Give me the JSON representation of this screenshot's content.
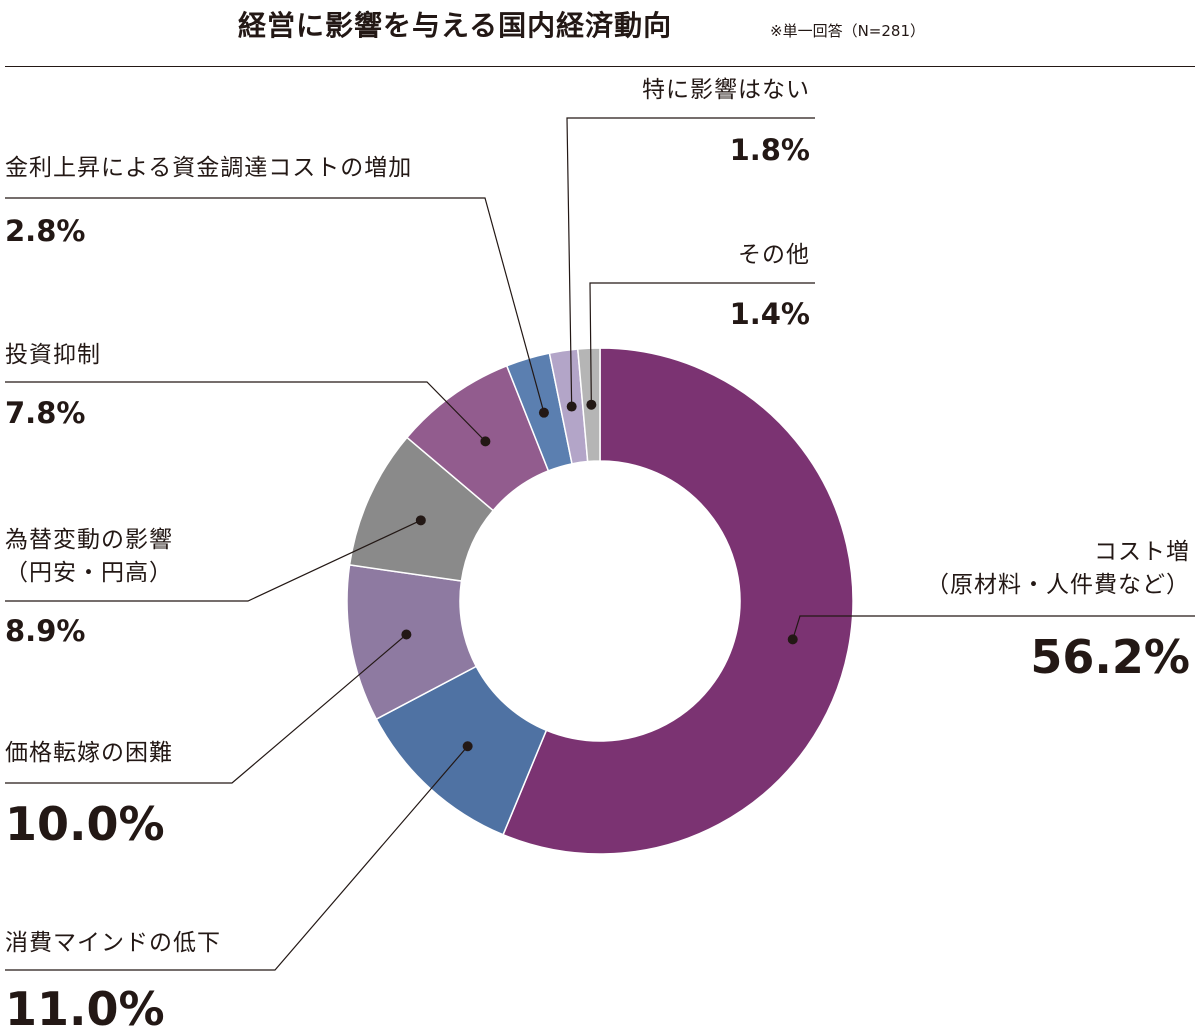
{
  "chart_data": {
    "type": "donut",
    "title": "経営に影響を与える国内経済動向",
    "subtitle": "※単一回答（N=281）",
    "categories": [
      "コスト増\n（原材料・人件費など）",
      "消費マインドの低下",
      "価格転嫁の困難",
      "為替変動の影響\n（円安・円高）",
      "投資抑制",
      "金利上昇による資金調達コストの増加",
      "特に影響はない",
      "その他"
    ],
    "values": [
      56.2,
      11.0,
      10.0,
      8.9,
      7.8,
      2.8,
      1.8,
      1.4
    ],
    "value_labels": [
      "56.2%",
      "11.0%",
      "10.0%",
      "8.9%",
      "7.8%",
      "2.8%",
      "1.8%",
      "1.4%"
    ],
    "colors": [
      "#7b3372",
      "#4f72a3",
      "#8e7aa1",
      "#8a8a8a",
      "#925c8e",
      "#5b7fb0",
      "#b3a5c8",
      "#b5b5b5"
    ]
  }
}
